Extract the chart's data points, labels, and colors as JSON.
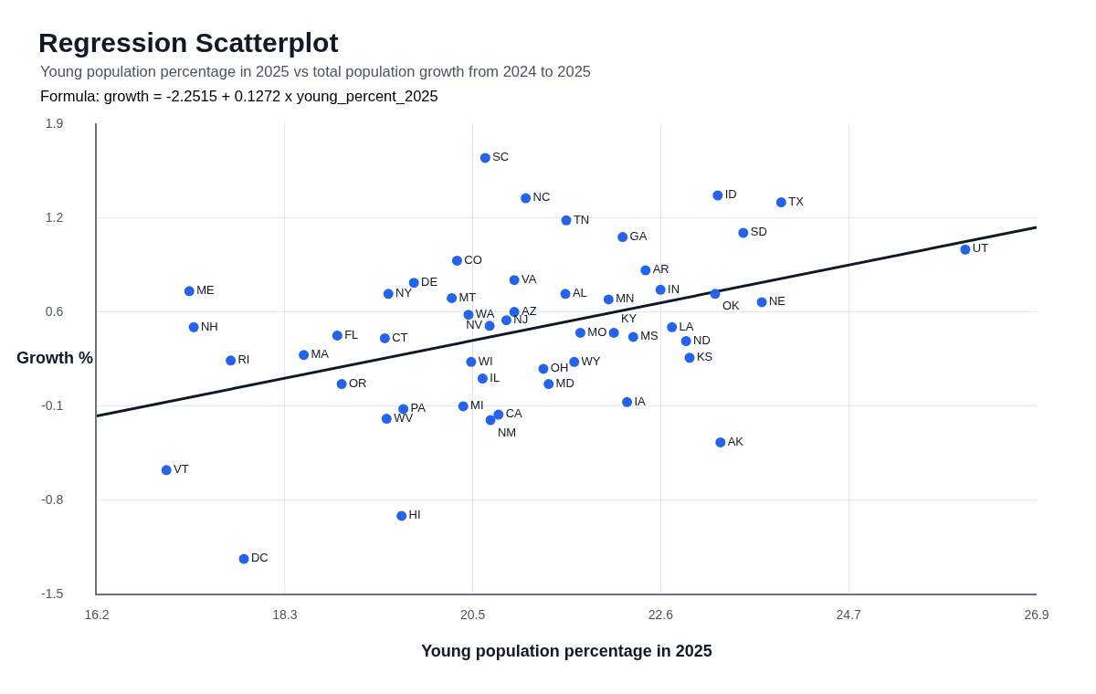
{
  "chart_data": {
    "type": "scatter",
    "title": "Regression Scatterplot",
    "subtitle": "Young population percentage in 2025 vs total population growth from 2024 to 2025",
    "annotations": [
      "Formula: growth = -2.2515 + 0.1272 x young_percent_2025"
    ],
    "xlabel": "Young population percentage in 2025",
    "ylabel": "Growth %",
    "xlim": [
      16.2,
      26.87
    ],
    "xticks": [
      16.2,
      {
        "value": 18.334,
        "label": "18.3"
      },
      {
        "value": 20.468,
        "label": "20.5"
      },
      {
        "value": 22.602,
        "label": "22.6"
      },
      {
        "value": 24.736,
        "label": "24.7"
      },
      {
        "value": 26.87,
        "label": "26.9"
      }
    ],
    "ylim": [
      -1.47,
      1.92
    ],
    "yticks": [
      {
        "value": -1.47,
        "label": "-1.5"
      },
      {
        "value": -0.792,
        "label": "-0.8"
      },
      {
        "value": -0.114,
        "label": "-0.1"
      },
      {
        "value": 0.564,
        "label": "0.6"
      },
      {
        "value": 1.242,
        "label": "1.2"
      },
      {
        "value": 1.92,
        "label": "1.9"
      }
    ],
    "grid": true,
    "series": [
      {
        "type": "line",
        "color": "#111827",
        "line_style": "solid",
        "x": [
          16.2,
          26.87
        ],
        "values": [
          -0.19,
          1.17
        ]
      },
      {
        "color": "#2563eb",
        "marker": "circle",
        "x": [
          17.25,
          17.3,
          17.72,
          18.55,
          18.93,
          19.47,
          18.98,
          19.51,
          19.68,
          19.49,
          16.99,
          19.66,
          17.87,
          20.61,
          21.07,
          21.53,
          22.17,
          20.29,
          19.8,
          20.94,
          20.23,
          21.52,
          22.01,
          22.43,
          20.42,
          20.94,
          20.85,
          20.66,
          21.69,
          22.07,
          22.29,
          20.45,
          21.62,
          21.27,
          20.58,
          21.33,
          22.22,
          20.36,
          20.76,
          20.67,
          23.25,
          23.97,
          23.54,
          22.6,
          23.22,
          23.75,
          22.73,
          22.89,
          22.93,
          23.28,
          26.06
        ],
        "values": [
          0.71,
          0.45,
          0.21,
          0.25,
          0.39,
          0.37,
          0.04,
          0.69,
          -0.14,
          -0.21,
          -0.58,
          -0.91,
          -1.22,
          1.67,
          1.38,
          1.22,
          1.1,
          0.93,
          0.77,
          0.79,
          0.66,
          0.69,
          0.65,
          0.86,
          0.54,
          0.56,
          0.5,
          0.46,
          0.41,
          0.41,
          0.38,
          0.2,
          0.2,
          0.15,
          0.08,
          0.04,
          -0.09,
          -0.12,
          -0.18,
          -0.22,
          1.4,
          1.35,
          1.13,
          0.72,
          0.69,
          0.63,
          0.45,
          0.35,
          0.23,
          -0.38,
          1.01
        ],
        "value_labels": [
          "ME",
          "NH",
          "RI",
          "MA",
          "FL",
          "CT",
          "OR",
          "NY",
          "PA",
          "WV",
          "VT",
          "HI",
          "DC",
          "SC",
          "NC",
          "TN",
          "GA",
          "CO",
          "DE",
          "VA",
          "MT",
          "AL",
          "MN",
          "AR",
          "WA",
          "AZ",
          "NJ",
          "NV",
          "MO",
          "KY",
          "MS",
          "WI",
          "WY",
          "OH",
          "IL",
          "MD",
          "IA",
          "MI",
          "CA",
          "NM",
          "ID",
          "TX",
          "SD",
          "IN",
          "OK",
          "NE",
          "LA",
          "ND",
          "KS",
          "AK",
          "UT"
        ]
      }
    ]
  }
}
